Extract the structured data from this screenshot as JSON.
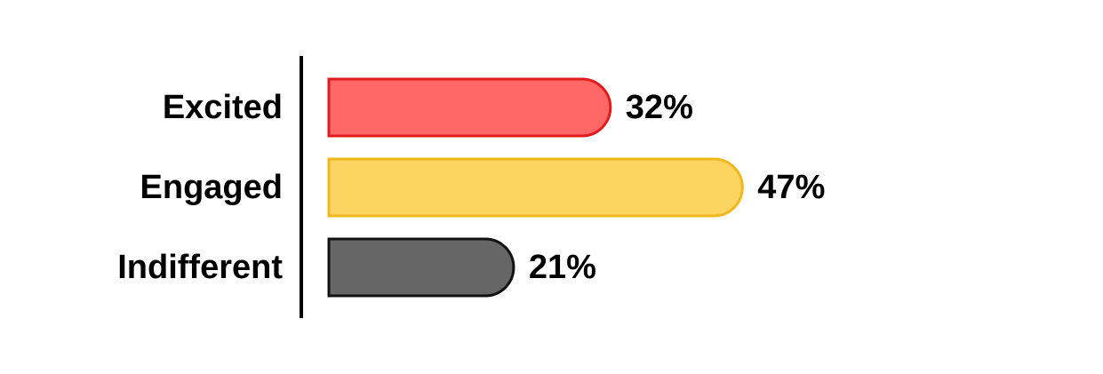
{
  "chart_data": {
    "type": "bar",
    "orientation": "horizontal",
    "categories": [
      "Excited",
      "Engaged",
      "Indifferent"
    ],
    "values": [
      32,
      47,
      21
    ],
    "value_labels": [
      "32%",
      "47%",
      "21%"
    ],
    "unit": "%",
    "xlim": [
      0,
      100
    ],
    "grid": false,
    "legend": "none",
    "colors": {
      "fills": [
        "#ff6666",
        "#fcd462",
        "#666666"
      ],
      "strokes": [
        "#e01b1b",
        "#f0b81c",
        "#111111"
      ],
      "axis": "#000000",
      "text": "#000000"
    }
  }
}
